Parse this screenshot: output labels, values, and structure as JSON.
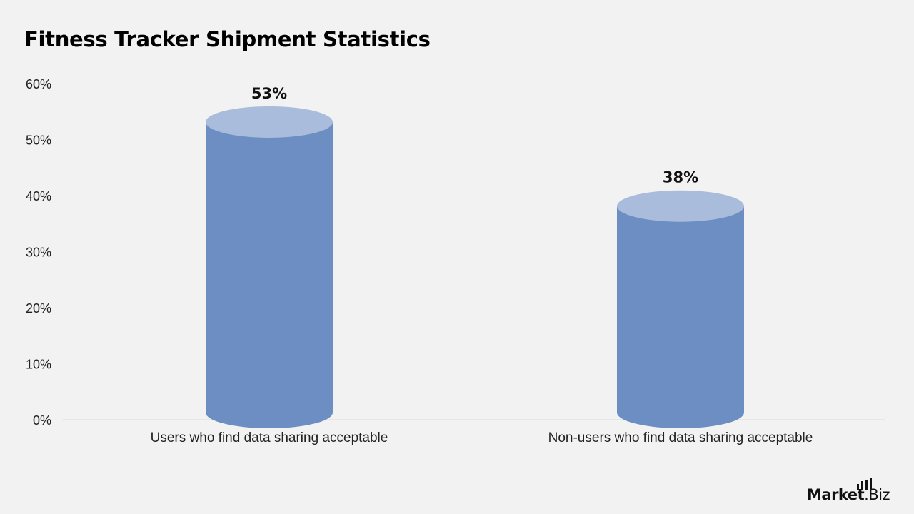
{
  "chart_data": {
    "type": "bar",
    "style": "cylinder",
    "title": "Fitness Tracker Shipment Statistics",
    "xlabel": "",
    "ylabel": "",
    "categories": [
      "Users who find data sharing acceptable",
      "Non-users who find data sharing acceptable"
    ],
    "values": [
      53,
      38
    ],
    "value_labels": [
      "53%",
      "38%"
    ],
    "ylim": [
      0,
      60
    ],
    "yticks": [
      0,
      10,
      20,
      30,
      40,
      50,
      60
    ],
    "ytick_labels": [
      "0%",
      "10%",
      "20%",
      "30%",
      "40%",
      "50%",
      "60%"
    ],
    "grid": false,
    "legend": "none",
    "colors": {
      "bar_body": "#6c8ec3",
      "bar_top": "#a9bcdb",
      "background": "#f2f2f2",
      "axis_line": "#d9d9d9"
    }
  },
  "brand": {
    "logo_text_bold": "Market",
    "logo_text_light": ".Biz",
    "logo_icon": "bar-chart-icon"
  }
}
